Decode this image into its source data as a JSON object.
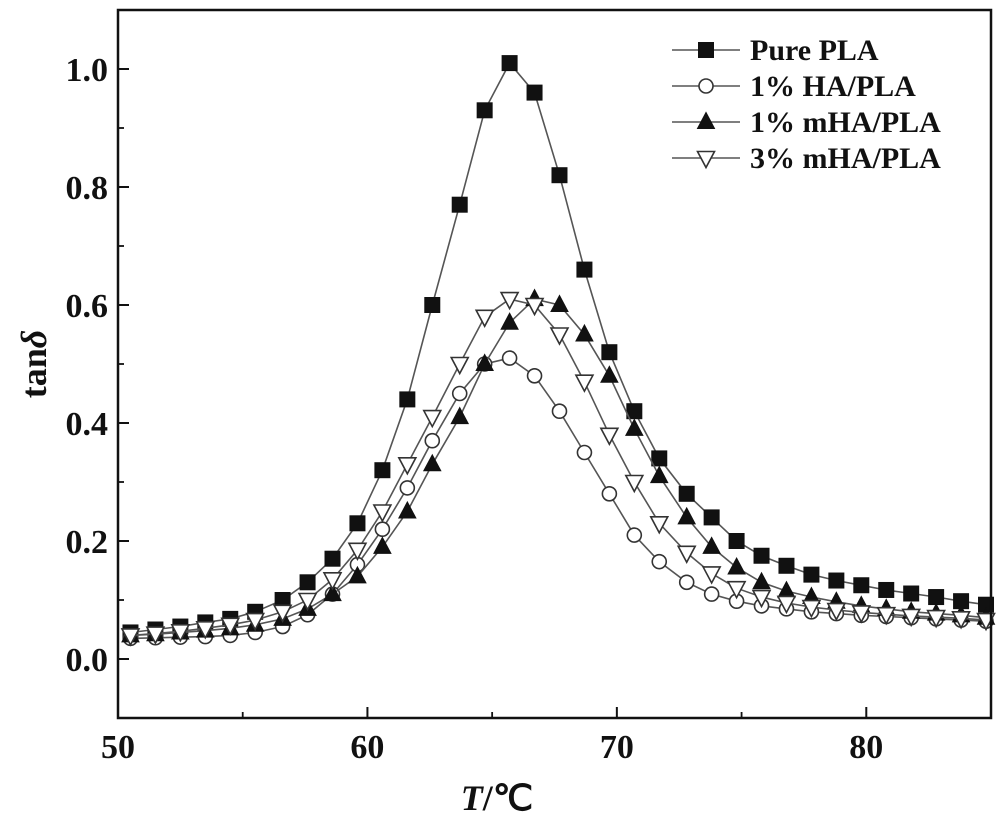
{
  "chart_data": {
    "type": "line",
    "title": "",
    "xlabel": "T/℃",
    "xlabel_italic": "T",
    "xlabel_unit": "/℃",
    "ylabel": "tanδ",
    "ylabel_main": "tan",
    "ylabel_italic": "δ",
    "xlim": [
      50,
      85
    ],
    "ylim": [
      -0.1,
      1.1
    ],
    "xticks": [
      50,
      60,
      70,
      80
    ],
    "xtick_labels": [
      "50",
      "60",
      "70",
      "80"
    ],
    "yticks": [
      0.0,
      0.2,
      0.4,
      0.6,
      0.8,
      1.0
    ],
    "ytick_labels": [
      "0.0",
      "0.2",
      "0.4",
      "0.6",
      "0.8",
      "1.0"
    ],
    "grid": false,
    "legend_position": "top-right",
    "series": [
      {
        "name": "Pure PLA",
        "marker": "filled-square",
        "x": [
          50.5,
          51.5,
          52.5,
          53.5,
          54.5,
          55.5,
          56.6,
          57.6,
          58.6,
          59.6,
          60.6,
          61.6,
          62.6,
          63.7,
          64.7,
          65.7,
          66.7,
          67.7,
          68.7,
          69.7,
          70.7,
          71.7,
          72.8,
          73.8,
          74.8,
          75.8,
          76.8,
          77.8,
          78.8,
          79.8,
          80.8,
          81.8,
          82.8,
          83.8,
          84.8
        ],
        "y": [
          0.045,
          0.05,
          0.055,
          0.062,
          0.068,
          0.08,
          0.1,
          0.13,
          0.17,
          0.23,
          0.32,
          0.44,
          0.6,
          0.77,
          0.93,
          1.01,
          0.96,
          0.82,
          0.66,
          0.52,
          0.42,
          0.34,
          0.28,
          0.24,
          0.2,
          0.175,
          0.158,
          0.143,
          0.133,
          0.125,
          0.117,
          0.111,
          0.105,
          0.098,
          0.092
        ]
      },
      {
        "name": "1% HA/PLA",
        "marker": "open-circle",
        "x": [
          50.5,
          51.5,
          52.5,
          53.5,
          54.5,
          55.5,
          56.6,
          57.6,
          58.6,
          59.6,
          60.6,
          61.6,
          62.6,
          63.7,
          64.7,
          65.7,
          66.7,
          67.7,
          68.7,
          69.7,
          70.7,
          71.7,
          72.8,
          73.8,
          74.8,
          75.8,
          76.8,
          77.8,
          78.8,
          79.8,
          80.8,
          81.8,
          82.8,
          83.8,
          84.8
        ],
        "y": [
          0.035,
          0.036,
          0.037,
          0.038,
          0.04,
          0.045,
          0.055,
          0.075,
          0.11,
          0.16,
          0.22,
          0.29,
          0.37,
          0.45,
          0.5,
          0.51,
          0.48,
          0.42,
          0.35,
          0.28,
          0.21,
          0.165,
          0.13,
          0.11,
          0.098,
          0.09,
          0.085,
          0.08,
          0.077,
          0.074,
          0.072,
          0.07,
          0.068,
          0.066,
          0.064
        ]
      },
      {
        "name": "1% mHA/PLA",
        "marker": "filled-triangle",
        "x": [
          50.5,
          51.5,
          52.5,
          53.5,
          54.5,
          55.5,
          56.6,
          57.6,
          58.6,
          59.6,
          60.6,
          61.6,
          62.6,
          63.7,
          64.7,
          65.7,
          66.7,
          67.7,
          68.7,
          69.7,
          70.7,
          71.7,
          72.8,
          73.8,
          74.8,
          75.8,
          76.8,
          77.8,
          78.8,
          79.8,
          80.8,
          81.8,
          82.8,
          83.8,
          84.8
        ],
        "y": [
          0.04,
          0.042,
          0.045,
          0.048,
          0.052,
          0.058,
          0.068,
          0.085,
          0.11,
          0.14,
          0.19,
          0.25,
          0.33,
          0.41,
          0.5,
          0.57,
          0.61,
          0.6,
          0.55,
          0.48,
          0.39,
          0.31,
          0.24,
          0.19,
          0.155,
          0.13,
          0.115,
          0.105,
          0.097,
          0.09,
          0.085,
          0.08,
          0.077,
          0.074,
          0.07
        ]
      },
      {
        "name": "3% mHA/PLA",
        "marker": "open-triangle-down",
        "x": [
          50.5,
          51.5,
          52.5,
          53.5,
          54.5,
          55.5,
          56.6,
          57.6,
          58.6,
          59.6,
          60.6,
          61.6,
          62.6,
          63.7,
          64.7,
          65.7,
          66.7,
          67.7,
          68.7,
          69.7,
          70.7,
          71.7,
          72.8,
          73.8,
          74.8,
          75.8,
          76.8,
          77.8,
          78.8,
          79.8,
          80.8,
          81.8,
          82.8,
          83.8,
          84.8
        ],
        "y": [
          0.04,
          0.043,
          0.047,
          0.052,
          0.058,
          0.066,
          0.08,
          0.1,
          0.135,
          0.185,
          0.25,
          0.33,
          0.41,
          0.5,
          0.58,
          0.61,
          0.6,
          0.55,
          0.47,
          0.38,
          0.3,
          0.23,
          0.18,
          0.145,
          0.12,
          0.105,
          0.095,
          0.088,
          0.083,
          0.079,
          0.076,
          0.073,
          0.071,
          0.069,
          0.066
        ]
      }
    ]
  }
}
